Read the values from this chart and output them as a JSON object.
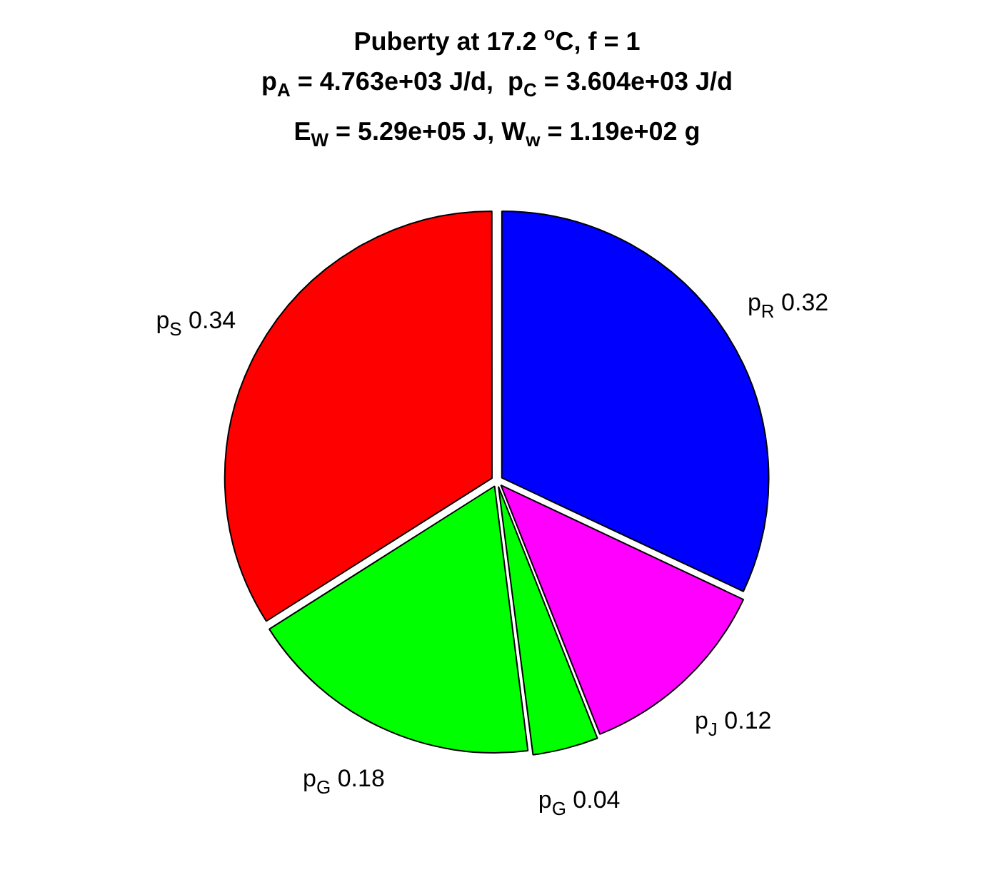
{
  "chart_data": {
    "type": "pie",
    "title": "Puberty at 17.2 $^{o}$C, f = 1",
    "subtitle": "p$_{A}$ = 4.763e+03 J/d,  p$_{C}$ = 3.604e+03 J/d\nE$_{W}$ = 5.29e+05 J, W$_{w}$ = 1.19e+02 g",
    "categories": [
      "p$_{R}$",
      "p$_{J}$",
      "p$_{G}$",
      "p$_{G}$",
      "p$_{S}$"
    ],
    "values": [
      0.32,
      0.12,
      0.04,
      0.18,
      0.34
    ],
    "colors": [
      "#0000ff",
      "#ff00ff",
      "#00ff00",
      "#00ff00",
      "#ff0000"
    ],
    "data_labels": true
  }
}
